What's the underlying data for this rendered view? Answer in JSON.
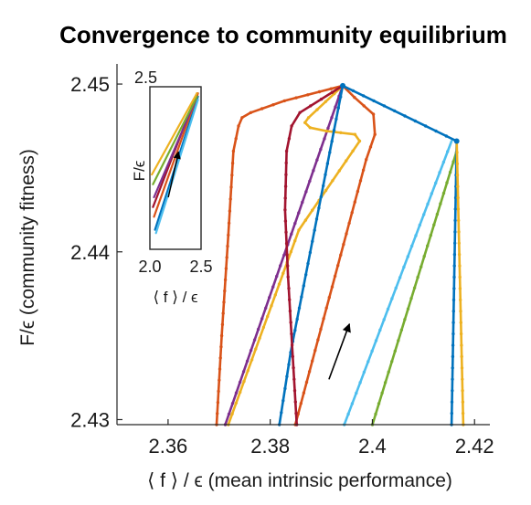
{
  "chart_data": {
    "type": "line",
    "title": "Convergence to community equilibrium",
    "xlabel": "⟨ f ⟩ / ϵ (mean intrinsic performance)",
    "ylabel": "F/ϵ (community fitness)",
    "xlim": [
      2.35,
      2.423
    ],
    "ylim": [
      2.4297,
      2.4512
    ],
    "xticks": [
      2.36,
      2.38,
      2.4,
      2.42
    ],
    "xtick_labels": [
      "2.36",
      "2.38",
      "2.4",
      "2.42"
    ],
    "yticks": [
      2.43,
      2.44,
      2.45
    ],
    "ytick_labels": [
      "2.43",
      "2.44",
      "2.45"
    ],
    "grid": false,
    "arrow": {
      "from": [
        2.3915,
        2.4324
      ],
      "to": [
        2.3955,
        2.4357
      ]
    },
    "equilibria": [
      [
        2.3942,
        2.4499
      ],
      [
        2.4165,
        2.4466
      ]
    ],
    "series": [
      {
        "color": "#d95319",
        "points": [
          [
            2.3695,
            2.4297
          ],
          [
            2.3705,
            2.435
          ],
          [
            2.3718,
            2.441
          ],
          [
            2.3728,
            2.446
          ],
          [
            2.3738,
            2.4475
          ],
          [
            2.3745,
            2.448
          ],
          [
            2.3762,
            2.4483
          ],
          [
            2.3828,
            2.449
          ],
          [
            2.3942,
            2.4499
          ]
        ]
      },
      {
        "color": "#7e2f8e",
        "points": [
          [
            2.3712,
            2.4297
          ],
          [
            2.3942,
            2.4499
          ]
        ]
      },
      {
        "color": "#edb120",
        "points": [
          [
            2.3718,
            2.4297
          ],
          [
            2.3856,
            2.4413
          ],
          [
            2.3975,
            2.4466
          ],
          [
            2.3966,
            2.447
          ],
          [
            2.391,
            2.4472
          ],
          [
            2.3878,
            2.4474
          ],
          [
            2.3868,
            2.4477
          ],
          [
            2.3875,
            2.448
          ],
          [
            2.3942,
            2.4499
          ]
        ]
      },
      {
        "color": "#0072bd",
        "points": [
          [
            2.3818,
            2.4297
          ],
          [
            2.384,
            2.434
          ],
          [
            2.3942,
            2.4499
          ]
        ]
      },
      {
        "color": "#d95319",
        "points": [
          [
            2.3849,
            2.4297
          ],
          [
            2.3988,
            2.4455
          ],
          [
            2.4005,
            2.447
          ],
          [
            2.4002,
            2.4482
          ],
          [
            2.3965,
            2.4492
          ],
          [
            2.3942,
            2.4499
          ]
        ]
      },
      {
        "color": "#a2142f",
        "points": [
          [
            2.3852,
            2.4297
          ],
          [
            2.3835,
            2.4385
          ],
          [
            2.3829,
            2.4425
          ],
          [
            2.3832,
            2.446
          ],
          [
            2.3842,
            2.4475
          ],
          [
            2.3858,
            2.4483
          ],
          [
            2.3942,
            2.4499
          ]
        ]
      },
      {
        "color": "#4dbeee",
        "points": [
          [
            2.3945,
            2.4297
          ],
          [
            2.4155,
            2.4466
          ]
        ]
      },
      {
        "color": "#77ac30",
        "points": [
          [
            2.4,
            2.4297
          ],
          [
            2.4165,
            2.446
          ]
        ]
      },
      {
        "color": "#0072bd",
        "points": [
          [
            2.4155,
            2.4297
          ],
          [
            2.4165,
            2.4466
          ]
        ]
      },
      {
        "color": "#edb120",
        "points": [
          [
            2.4178,
            2.4297
          ],
          [
            2.4165,
            2.4466
          ]
        ]
      },
      {
        "color": "#0072bd",
        "points": [
          [
            2.3942,
            2.4499
          ],
          [
            2.4165,
            2.4466
          ]
        ]
      }
    ],
    "inset": {
      "xlim": [
        2.0,
        2.5
      ],
      "ylim": [
        2.0,
        2.5
      ],
      "xtick_labels": [
        "2.0",
        "2.5"
      ],
      "ytick_labels": [
        "2.5"
      ],
      "xlabel": "⟨ f ⟩ / ϵ",
      "ylabel": "F/ϵ",
      "arrow": {
        "from": [
          2.18,
          2.16
        ],
        "to": [
          2.28,
          2.3
        ]
      },
      "series": [
        {
          "color": "#0072bd",
          "points": [
            [
              2.05,
              2.06
            ],
            [
              2.47,
              2.47
            ]
          ]
        },
        {
          "color": "#4dbeee",
          "points": [
            [
              2.06,
              2.05
            ],
            [
              2.47,
              2.46
            ]
          ]
        },
        {
          "color": "#d95319",
          "points": [
            [
              2.04,
              2.1
            ],
            [
              2.47,
              2.48
            ]
          ]
        },
        {
          "color": "#a2142f",
          "points": [
            [
              2.03,
              2.13
            ],
            [
              2.46,
              2.48
            ]
          ]
        },
        {
          "color": "#7e2f8e",
          "points": [
            [
              2.04,
              2.16
            ],
            [
              2.46,
              2.47
            ]
          ]
        },
        {
          "color": "#77ac30",
          "points": [
            [
              2.03,
              2.2
            ],
            [
              2.46,
              2.47
            ]
          ]
        },
        {
          "color": "#edb120",
          "points": [
            [
              2.02,
              2.23
            ],
            [
              2.46,
              2.48
            ]
          ]
        }
      ]
    }
  }
}
